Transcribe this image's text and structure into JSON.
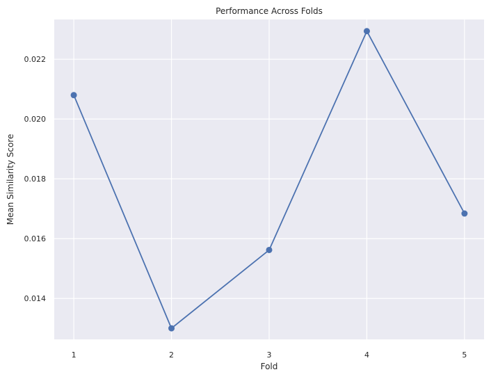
{
  "chart_data": {
    "type": "line",
    "title": "Performance Across Folds",
    "xlabel": "Fold",
    "ylabel": "Mean Similarity Score",
    "x": [
      1,
      2,
      3,
      4,
      5
    ],
    "xticks": [
      "1",
      "2",
      "3",
      "4",
      "5"
    ],
    "yticks": [
      "0.014",
      "0.016",
      "0.018",
      "0.020",
      "0.022"
    ],
    "ytick_values": [
      0.014,
      0.016,
      0.018,
      0.02,
      0.022
    ],
    "series": [
      {
        "values": [
          0.0208,
          0.013,
          0.01562,
          0.02294,
          0.01684
        ]
      }
    ],
    "xlim": [
      0.8,
      5.2
    ],
    "ylim": [
      0.01263,
      0.02333
    ],
    "grid": true,
    "legend": "none",
    "colors": {
      "line": "#4c72b0",
      "background": "#eaeaf2",
      "grid": "#ffffff"
    }
  }
}
